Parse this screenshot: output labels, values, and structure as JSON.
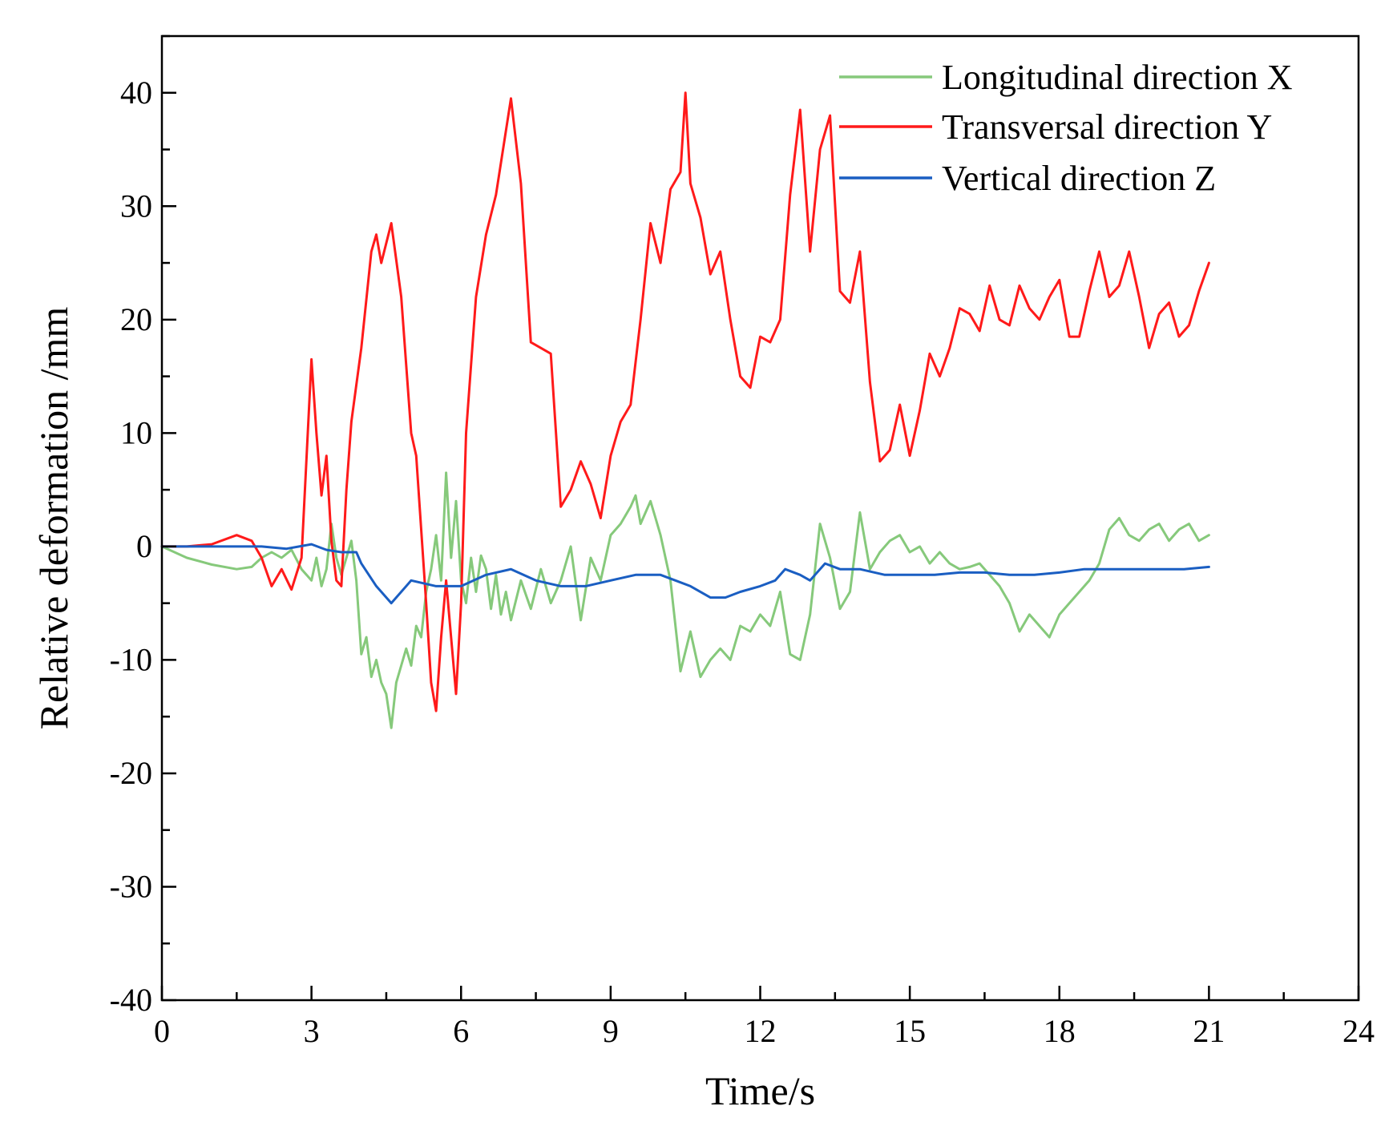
{
  "chart_data": {
    "type": "line",
    "title": "",
    "xlabel": "Time/s",
    "ylabel": "Relative deformation /mm",
    "xlim": [
      0,
      24
    ],
    "ylim": [
      -40,
      45
    ],
    "xticks": [
      0,
      3,
      6,
      9,
      12,
      15,
      18,
      21,
      24
    ],
    "xtick_labels": [
      "0",
      "3",
      "6",
      "9",
      "12",
      "15",
      "18",
      "21",
      "24"
    ],
    "yticks": [
      -40,
      -30,
      -20,
      -10,
      0,
      10,
      20,
      30,
      40
    ],
    "ytick_labels": [
      "-40",
      "-30",
      "-20",
      "-10",
      "0",
      "10",
      "20",
      "30",
      "40"
    ],
    "grid": false,
    "legend_position": "top-right",
    "series": [
      {
        "name": "Longitudinal direction X",
        "color": "#86c97b",
        "x": [
          0,
          0.5,
          1.0,
          1.5,
          1.8,
          2.0,
          2.2,
          2.4,
          2.6,
          2.8,
          3.0,
          3.1,
          3.2,
          3.3,
          3.4,
          3.5,
          3.6,
          3.7,
          3.8,
          3.9,
          4.0,
          4.1,
          4.2,
          4.3,
          4.4,
          4.5,
          4.6,
          4.7,
          4.8,
          4.9,
          5.0,
          5.1,
          5.2,
          5.3,
          5.4,
          5.5,
          5.6,
          5.7,
          5.8,
          5.9,
          6.0,
          6.1,
          6.2,
          6.3,
          6.4,
          6.5,
          6.6,
          6.7,
          6.8,
          6.9,
          7.0,
          7.2,
          7.4,
          7.6,
          7.8,
          8.0,
          8.2,
          8.4,
          8.6,
          8.8,
          9.0,
          9.2,
          9.4,
          9.5,
          9.6,
          9.8,
          9.9,
          10.0,
          10.2,
          10.4,
          10.6,
          10.8,
          11.0,
          11.2,
          11.4,
          11.6,
          11.8,
          12.0,
          12.2,
          12.4,
          12.6,
          12.8,
          12.9,
          13.0,
          13.2,
          13.4,
          13.6,
          13.8,
          14.0,
          14.2,
          14.4,
          14.6,
          14.8,
          15.0,
          15.2,
          15.4,
          15.6,
          15.8,
          16.0,
          16.2,
          16.4,
          16.6,
          16.8,
          17.0,
          17.2,
          17.4,
          17.6,
          17.8,
          18.0,
          18.2,
          18.4,
          18.6,
          18.8,
          19.0,
          19.2,
          19.4,
          19.6,
          19.8,
          20.0,
          20.2,
          20.4,
          20.6,
          20.8,
          21.0
        ],
        "y": [
          0,
          -1.0,
          -1.6,
          -2.0,
          -1.8,
          -1.0,
          -0.5,
          -1.0,
          -0.3,
          -2.0,
          -3.0,
          -1.0,
          -3.5,
          -2.0,
          2.0,
          -1.0,
          -2.5,
          -1.0,
          0.5,
          -3.0,
          -9.5,
          -8.0,
          -11.5,
          -10.0,
          -12.0,
          -13.0,
          -16.0,
          -12.0,
          -10.5,
          -9.0,
          -10.5,
          -7.0,
          -8.0,
          -4.0,
          -2.0,
          1.0,
          -3.0,
          6.5,
          -1.0,
          4.0,
          -3.0,
          -5.0,
          -1.0,
          -4.0,
          -0.8,
          -2.0,
          -5.5,
          -2.5,
          -6.0,
          -4.0,
          -6.5,
          -3.0,
          -5.5,
          -2.0,
          -5.0,
          -3.0,
          0,
          -6.5,
          -1.0,
          -3.0,
          1.0,
          2.0,
          3.5,
          4.5,
          2.0,
          4.0,
          2.5,
          1.0,
          -3.0,
          -11.0,
          -7.5,
          -11.5,
          -10.0,
          -9.0,
          -10.0,
          -7.0,
          -7.5,
          -6.0,
          -7.0,
          -4.0,
          -9.5,
          -10.0,
          -8.0,
          -6.0,
          2.0,
          -1.0,
          -5.5,
          -4.0,
          3.0,
          -2.0,
          -0.5,
          0.5,
          1.0,
          -0.5,
          0.0,
          -1.5,
          -0.5,
          -1.5,
          -2.0,
          -1.8,
          -1.5,
          -2.5,
          -3.5,
          -5.0,
          -7.5,
          -6.0,
          -7.0,
          -8.0,
          -6.0,
          -5.0,
          -4.0,
          -3.0,
          -1.5,
          1.5,
          2.5,
          1.0,
          0.5,
          1.5,
          2.0,
          0.5,
          1.5,
          2.0,
          0.5,
          1.0
        ]
      },
      {
        "name": "Transversal direction Y",
        "color": "#ff1a1a",
        "x": [
          0,
          0.5,
          1.0,
          1.5,
          1.8,
          2.0,
          2.2,
          2.4,
          2.6,
          2.8,
          3.0,
          3.1,
          3.2,
          3.3,
          3.4,
          3.5,
          3.6,
          3.7,
          3.8,
          4.0,
          4.2,
          4.3,
          4.4,
          4.6,
          4.8,
          5.0,
          5.1,
          5.3,
          5.4,
          5.5,
          5.6,
          5.7,
          5.8,
          5.9,
          6.0,
          6.1,
          6.3,
          6.5,
          6.7,
          7.0,
          7.2,
          7.4,
          7.6,
          7.8,
          8.0,
          8.2,
          8.4,
          8.6,
          8.8,
          9.0,
          9.2,
          9.4,
          9.6,
          9.8,
          10.0,
          10.2,
          10.4,
          10.5,
          10.6,
          10.8,
          11.0,
          11.2,
          11.4,
          11.6,
          11.8,
          12.0,
          12.2,
          12.4,
          12.6,
          12.8,
          13.0,
          13.2,
          13.4,
          13.6,
          13.8,
          14.0,
          14.2,
          14.4,
          14.6,
          14.8,
          15.0,
          15.2,
          15.4,
          15.6,
          15.8,
          16.0,
          16.2,
          16.4,
          16.6,
          16.8,
          17.0,
          17.2,
          17.4,
          17.6,
          17.8,
          18.0,
          18.2,
          18.4,
          18.6,
          18.8,
          19.0,
          19.2,
          19.4,
          19.6,
          19.8,
          20.0,
          20.2,
          20.4,
          20.6,
          20.8,
          21.0
        ],
        "y": [
          0,
          0,
          0.2,
          1.0,
          0.5,
          -1.0,
          -3.5,
          -2.0,
          -3.8,
          -1.0,
          16.5,
          10.0,
          4.5,
          8.0,
          0.5,
          -3.0,
          -3.5,
          5.0,
          11.0,
          17.5,
          26.0,
          27.5,
          25.0,
          28.5,
          22.0,
          10.0,
          8.0,
          -5.0,
          -12.0,
          -14.5,
          -8.0,
          -3.0,
          -8.0,
          -13.0,
          -5.0,
          10.0,
          22.0,
          27.5,
          31.0,
          39.5,
          32.0,
          18.0,
          17.5,
          17.0,
          3.5,
          5.0,
          7.5,
          5.5,
          2.5,
          8.0,
          11.0,
          12.5,
          20.0,
          28.5,
          25.0,
          31.5,
          33.0,
          40.0,
          32.0,
          29.0,
          24.0,
          26.0,
          20.0,
          15.0,
          14.0,
          18.5,
          18.0,
          20.0,
          31.0,
          38.5,
          26.0,
          35.0,
          38.0,
          22.5,
          21.5,
          26.0,
          14.5,
          7.5,
          8.5,
          12.5,
          8.0,
          12.0,
          17.0,
          15.0,
          17.5,
          21.0,
          20.5,
          19.0,
          23.0,
          20.0,
          19.5,
          23.0,
          21.0,
          20.0,
          22.0,
          23.5,
          18.5,
          18.5,
          22.5,
          26.0,
          22.0,
          23.0,
          26.0,
          22.0,
          17.5,
          20.5,
          21.5,
          18.5,
          19.5,
          22.5,
          25.0
        ]
      },
      {
        "name": "Vertical direction Z",
        "color": "#1a5ec2",
        "x": [
          0,
          1.0,
          2.0,
          2.5,
          3.0,
          3.3,
          3.6,
          3.9,
          4.0,
          4.3,
          4.6,
          5.0,
          5.5,
          6.0,
          6.5,
          7.0,
          7.5,
          8.0,
          8.5,
          9.0,
          9.5,
          10.0,
          10.3,
          10.6,
          11.0,
          11.3,
          11.6,
          12.0,
          12.3,
          12.5,
          12.8,
          13.0,
          13.3,
          13.6,
          14.0,
          14.5,
          15.0,
          15.5,
          16.0,
          16.5,
          17.0,
          17.5,
          18.0,
          18.5,
          19.0,
          19.5,
          20.0,
          20.5,
          21.0
        ],
        "y": [
          0,
          0,
          0,
          -0.2,
          0.2,
          -0.3,
          -0.5,
          -0.5,
          -1.5,
          -3.5,
          -5.0,
          -3.0,
          -3.5,
          -3.5,
          -2.5,
          -2.0,
          -3.0,
          -3.5,
          -3.5,
          -3.0,
          -2.5,
          -2.5,
          -3.0,
          -3.5,
          -4.5,
          -4.5,
          -4.0,
          -3.5,
          -3.0,
          -2.0,
          -2.5,
          -3.0,
          -1.5,
          -2.0,
          -2.0,
          -2.5,
          -2.5,
          -2.5,
          -2.3,
          -2.3,
          -2.5,
          -2.5,
          -2.3,
          -2.0,
          -2.0,
          -2.0,
          -2.0,
          -2.0,
          -1.8
        ]
      }
    ]
  }
}
